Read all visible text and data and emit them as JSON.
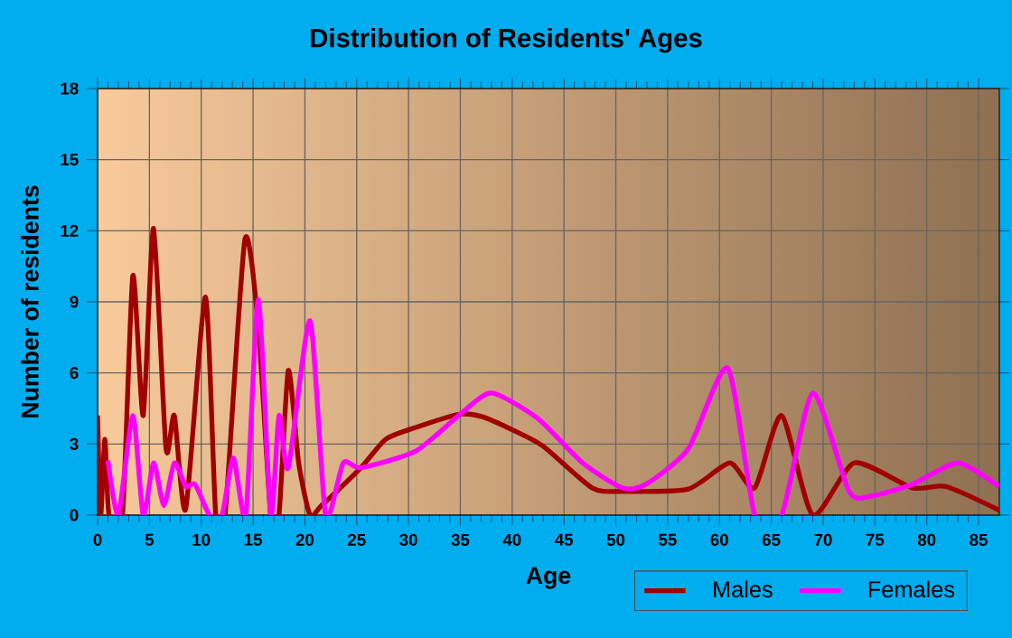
{
  "chart_data": {
    "type": "line",
    "title": "Distribution of Residents' Ages",
    "xlabel": "Age",
    "ylabel": "Number of residents",
    "xlim": [
      0,
      87
    ],
    "ylim": [
      0,
      18
    ],
    "xticks": [
      0,
      5,
      10,
      15,
      20,
      25,
      30,
      35,
      40,
      45,
      50,
      55,
      60,
      65,
      70,
      75,
      80,
      85
    ],
    "yticks": [
      0,
      3,
      6,
      9,
      12,
      15,
      18
    ],
    "grid": true,
    "legend": "bottom right",
    "series": [
      {
        "name": "Males",
        "color": "#a00000",
        "x": [
          0,
          0.3,
          0.7,
          1.1,
          2.4,
          3.4,
          4.4,
          5.4,
          6.6,
          7.4,
          8.5,
          10.4,
          11.4,
          12.3,
          14.2,
          15.5,
          16.7,
          17.5,
          18.4,
          19.4,
          20.5,
          21.6,
          25.4,
          27.8,
          30.7,
          34.8,
          37.1,
          40,
          43,
          47.7,
          50.6,
          57,
          61,
          63.4,
          66,
          69,
          73,
          78.6,
          81.9,
          87
        ],
        "values": [
          4.2,
          0,
          3.2,
          0,
          0,
          10.1,
          4.2,
          12.1,
          2.8,
          4.2,
          0.25,
          9.2,
          0,
          0,
          11.6,
          8,
          0,
          0,
          6.1,
          2.2,
          0,
          0.4,
          2,
          3.2,
          3.7,
          4.25,
          4.15,
          3.6,
          2.9,
          1.15,
          1,
          1.1,
          2.2,
          1.15,
          4.2,
          0,
          2.2,
          1.15,
          1.2,
          0.2
        ]
      },
      {
        "name": "Females",
        "color": "#ff00ff",
        "x": [
          1,
          2,
          3.4,
          4.4,
          5.4,
          6.4,
          7.4,
          8.5,
          9.4,
          10.8,
          12,
          13.1,
          14.3,
          15.5,
          16.7,
          17.5,
          18.4,
          20.5,
          22,
          23.7,
          25.4,
          30.7,
          35.1,
          38,
          42.4,
          46.8,
          50.6,
          52.9,
          57,
          60.8,
          63.4,
          66,
          69,
          72.5,
          74.6,
          78.6,
          83,
          87
        ],
        "values": [
          2.3,
          0,
          4.2,
          0,
          2.2,
          0.4,
          2.2,
          1.2,
          1.3,
          0,
          0,
          2.4,
          0,
          9.1,
          0,
          4.2,
          2,
          8.2,
          0,
          2.2,
          2,
          2.7,
          4.3,
          5.15,
          4.1,
          2.2,
          1.15,
          1.3,
          2.8,
          6.2,
          0,
          0,
          5.15,
          1,
          0.8,
          1.3,
          2.2,
          1.2
        ]
      }
    ]
  }
}
